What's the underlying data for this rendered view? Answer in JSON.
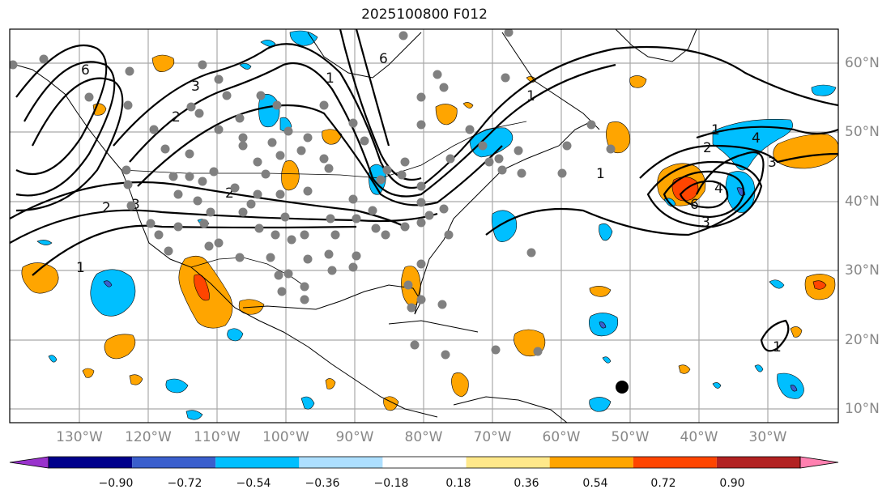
{
  "title": "2025100800 F012",
  "latitude_labels": [
    "60°N",
    "50°N",
    "40°N",
    "30°N",
    "20°N",
    "10°N"
  ],
  "longitude_labels": [
    "130°W",
    "120°W",
    "110°W",
    "100°W",
    "90°W",
    "80°W",
    "70°W",
    "60°W",
    "50°W",
    "40°W",
    "30°W"
  ],
  "colorbar": {
    "tick_labels": [
      "−0.90",
      "−0.72",
      "−0.54",
      "−0.36",
      "−0.18",
      "0.18",
      "0.36",
      "0.54",
      "0.72",
      "0.90"
    ],
    "colors": [
      "#9932CC",
      "#00008B",
      "#3A5FCD",
      "#00BFFF",
      "#ADDFFF",
      "#FFFFFF",
      "#FFE88A",
      "#FFA500",
      "#FF4500",
      "#B22222",
      "#FF80B0"
    ]
  },
  "contour_labels": [
    "6",
    "3",
    "2",
    "2",
    "1",
    "1",
    "3",
    "2",
    "6",
    "1",
    "1",
    "1",
    "2",
    "4",
    "3",
    "4",
    "6",
    "3",
    "1"
  ],
  "marker_color": "#808080"
}
